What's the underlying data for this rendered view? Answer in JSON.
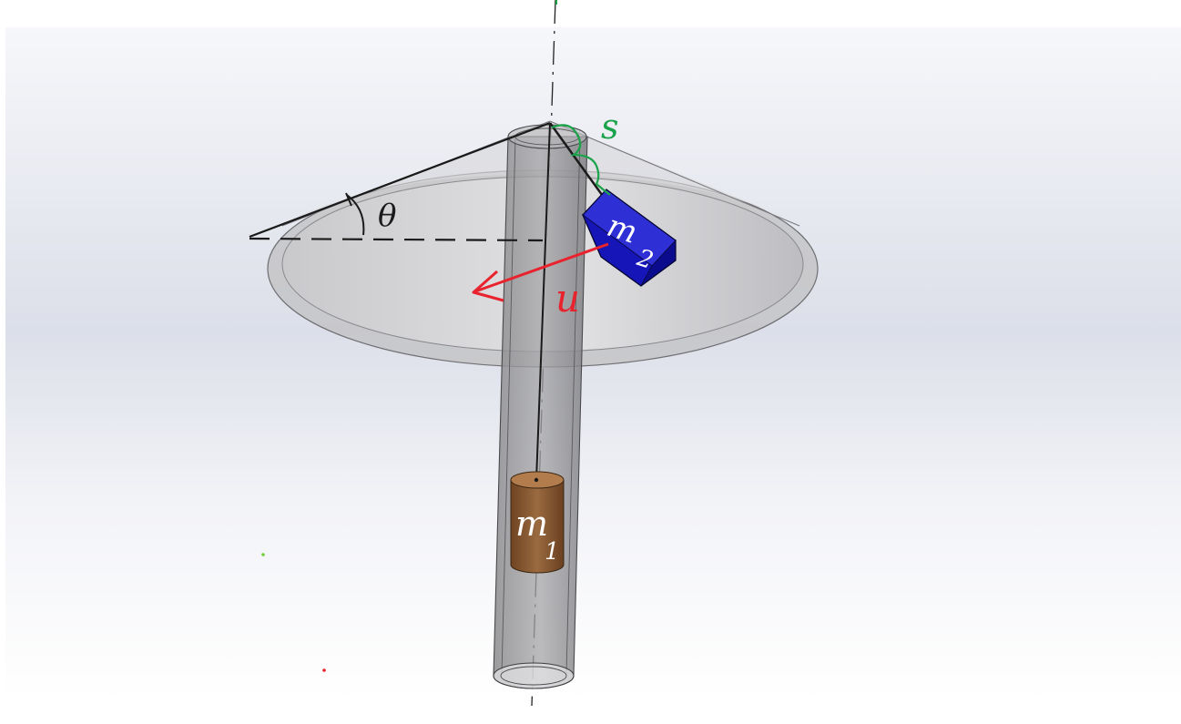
{
  "labels": {
    "theta": "θ",
    "s": "s",
    "u": "u",
    "m2_main": "m",
    "m2_sub": "2",
    "m1_main": "m",
    "m1_sub": "1"
  },
  "colors": {
    "viewport_top": "#f3f4f8",
    "viewport_band": "#dcdfe9",
    "viewport_bottom": "#fbfbfc",
    "cone_fill": "#d3d3d5",
    "cone_edge": "#7b7b7f",
    "tube_fill": "#8d8d90",
    "tube_edge": "#4a4a4d",
    "cube_front": "#1414b4",
    "cube_top": "#3030d8",
    "cube_side": "#0a0a86",
    "cylinder_body": "#8a5a32",
    "cylinder_top": "#b37c4c",
    "annotation_black": "#1a1a1a",
    "annotation_green": "#1aa34a",
    "annotation_red": "#e8232d",
    "label_white": "#ffffff"
  },
  "icons": {
    "arrow": "arrow-icon",
    "brace": "wavy-brace-icon",
    "angle_arc": "angle-arc-icon"
  }
}
